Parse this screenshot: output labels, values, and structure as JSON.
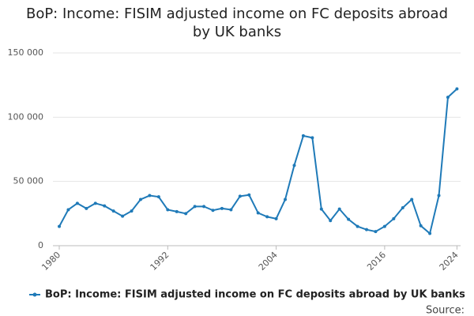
{
  "chart_data": {
    "type": "line",
    "title": "BoP: Income: FISIM adjusted income on FC deposits abroad by UK banks",
    "source": "Source:",
    "x": [
      1980,
      1981,
      1982,
      1983,
      1984,
      1985,
      1986,
      1987,
      1988,
      1989,
      1990,
      1991,
      1992,
      1993,
      1994,
      1995,
      1996,
      1997,
      1998,
      1999,
      2000,
      2001,
      2002,
      2003,
      2004,
      2005,
      2006,
      2007,
      2008,
      2009,
      2010,
      2011,
      2012,
      2013,
      2014,
      2015,
      2016,
      2017,
      2018,
      2019,
      2020,
      2021,
      2022,
      2023,
      2024
    ],
    "series": [
      {
        "name": "BoP: Income: FISIM adjusted income on FC deposits abroad by UK banks",
        "color": "#1f7ab8",
        "values": [
          15000,
          28000,
          33000,
          29000,
          33000,
          31000,
          27000,
          23000,
          27000,
          36000,
          39000,
          38000,
          28000,
          26500,
          25000,
          30500,
          30500,
          27500,
          29000,
          28000,
          38500,
          39500,
          25500,
          22500,
          21000,
          36000,
          62500,
          85500,
          84000,
          28500,
          19500,
          28500,
          20500,
          15000,
          12500,
          11000,
          15000,
          21000,
          29500,
          36000,
          15500,
          9500,
          39000,
          115500,
          122000
        ]
      }
    ],
    "xlim": [
      1979.3,
      2024.4
    ],
    "xticks": [
      1980,
      1992,
      2004,
      2016,
      2024
    ],
    "ylim": [
      0,
      150000
    ],
    "yticks": [
      0,
      {
        "value": 50000,
        "label": "50 000"
      },
      {
        "value": 100000,
        "label": "100 000"
      },
      {
        "value": 150000,
        "label": "150 000"
      }
    ],
    "grid": true
  }
}
